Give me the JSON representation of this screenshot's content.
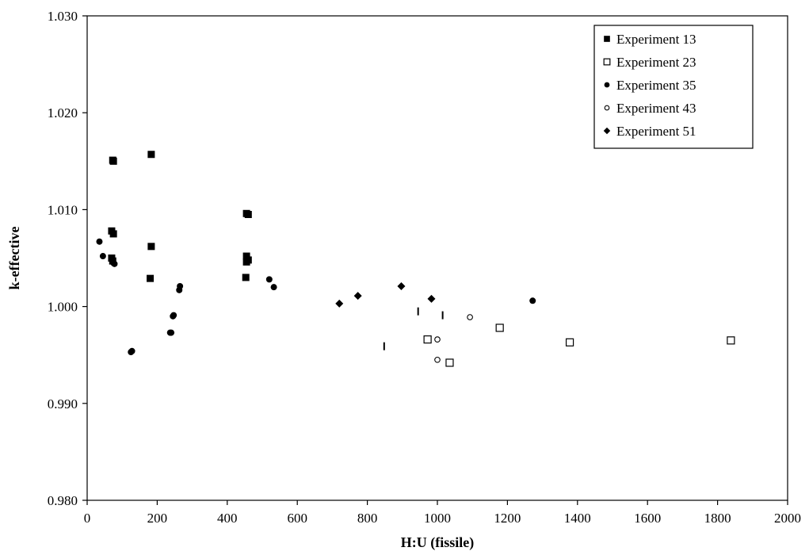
{
  "chart_data": {
    "type": "scatter",
    "title": "",
    "xlabel": "H:U (fissile)",
    "ylabel": "k-effective",
    "xlim": [
      0,
      2000
    ],
    "ylim": [
      0.98,
      1.03
    ],
    "x_ticks": [
      0,
      200,
      400,
      600,
      800,
      1000,
      1200,
      1400,
      1600,
      1800,
      2000
    ],
    "x_tick_labels": [
      "0",
      "200",
      "400",
      "600",
      "800",
      "1000",
      "1200",
      "1400",
      "1600",
      "1800",
      "2000"
    ],
    "y_ticks": [
      0.98,
      0.99,
      1.0,
      1.01,
      1.02,
      1.03
    ],
    "y_tick_labels": [
      "0.980",
      "0.990",
      "1.000",
      "1.010",
      "1.020",
      "1.030"
    ],
    "grid": false,
    "legend_position": "top-right",
    "series": [
      {
        "name": "Experiment 13",
        "marker": "filled-square",
        "color": "#000000",
        "points": [
          [
            73,
            1.0151
          ],
          [
            75,
            1.015
          ],
          [
            183,
            1.0157
          ],
          [
            70,
            1.0078
          ],
          [
            75,
            1.0075
          ],
          [
            183,
            1.0062
          ],
          [
            70,
            1.005
          ],
          [
            73,
            1.0047
          ],
          [
            180,
            1.0029
          ],
          [
            455,
            1.0096
          ],
          [
            460,
            1.0095
          ],
          [
            455,
            1.0052
          ],
          [
            460,
            1.0048
          ],
          [
            455,
            1.0046
          ],
          [
            453,
            1.003
          ]
        ]
      },
      {
        "name": "Experiment 23",
        "marker": "open-square",
        "color": "#000000",
        "points": [
          [
            972,
            0.9966
          ],
          [
            1035,
            0.9942
          ],
          [
            1178,
            0.9978
          ],
          [
            1378,
            0.9963
          ],
          [
            1838,
            0.9965
          ]
        ]
      },
      {
        "name": "Experiment 35",
        "marker": "filled-circle",
        "color": "#000000",
        "points": [
          [
            35,
            1.0067
          ],
          [
            45,
            1.0052
          ],
          [
            75,
            1.0045
          ],
          [
            78,
            1.0044
          ],
          [
            125,
            0.9953
          ],
          [
            128,
            0.9954
          ],
          [
            237,
            0.9973
          ],
          [
            240,
            0.9973
          ],
          [
            245,
            0.999
          ],
          [
            247,
            0.9991
          ],
          [
            263,
            1.0017
          ],
          [
            265,
            1.0021
          ],
          [
            520,
            1.0028
          ],
          [
            533,
            1.002
          ],
          [
            1272,
            1.0006
          ]
        ]
      },
      {
        "name": "Experiment 43",
        "marker": "open-circle",
        "color": "#000000",
        "points": [
          [
            1000,
            0.9966
          ],
          [
            1000,
            0.9945
          ],
          [
            1093,
            0.9989
          ]
        ]
      },
      {
        "name": "Experiment 51",
        "marker": "filled-diamond",
        "color": "#000000",
        "points": [
          [
            720,
            1.0003
          ],
          [
            773,
            1.0011
          ],
          [
            897,
            1.0021
          ],
          [
            983,
            1.0008
          ]
        ]
      },
      {
        "name": "",
        "marker": "vertical-dash",
        "color": "#000000",
        "points": [
          [
            848,
            0.9959
          ],
          [
            945,
            0.9995
          ],
          [
            1015,
            0.9991
          ]
        ]
      }
    ]
  }
}
